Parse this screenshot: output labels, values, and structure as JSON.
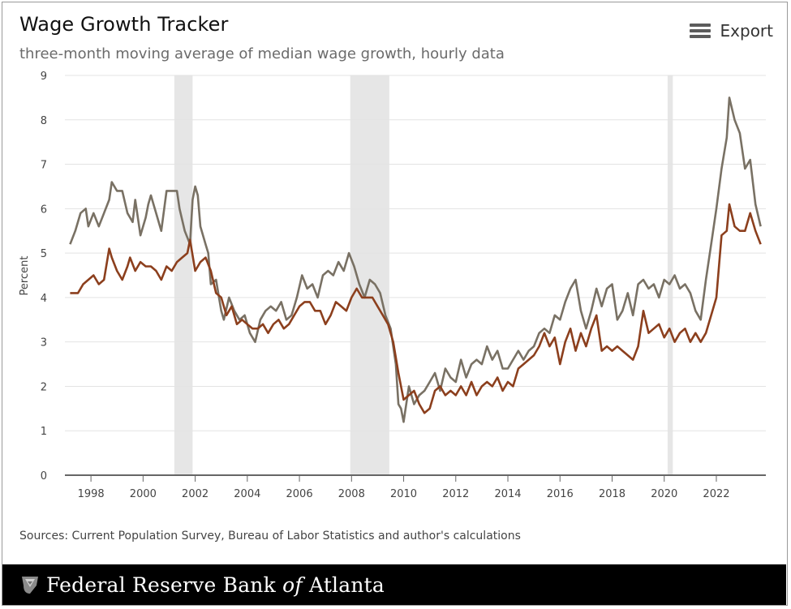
{
  "header": {
    "title": "Wage Growth Tracker",
    "subtitle": "three-month moving average of median wage growth, hourly data",
    "export_label": "Export",
    "export_icon": "hamburger-menu-icon"
  },
  "sources": "Sources: Current Population Survey, Bureau of Labor Statistics and author's calculations",
  "footer": {
    "bank_prefix": "Federal Reserve Bank",
    "bank_of": "of",
    "bank_city": "Atlanta",
    "logo_icon": "eagle-seal-icon"
  },
  "chart_data": {
    "type": "line",
    "title": "Wage Growth Tracker",
    "subtitle": "three-month moving average of median wage growth, hourly data",
    "xlabel": "",
    "ylabel": "Percent",
    "xlim": [
      1997.0,
      2023.9
    ],
    "ylim": [
      0,
      9
    ],
    "xticks": [
      1998,
      2000,
      2002,
      2004,
      2006,
      2008,
      2010,
      2012,
      2014,
      2016,
      2018,
      2020,
      2022
    ],
    "yticks": [
      0,
      1,
      2,
      3,
      4,
      5,
      6,
      7,
      8,
      9
    ],
    "grid": "horizontal",
    "legend": "none",
    "recessions": [
      {
        "start": 2001.2,
        "end": 2001.9
      },
      {
        "start": 2007.95,
        "end": 2009.45
      },
      {
        "start": 2020.13,
        "end": 2020.33
      }
    ],
    "series": [
      {
        "color": "#797164",
        "points": [
          [
            1997.2,
            5.2
          ],
          [
            1997.4,
            5.5
          ],
          [
            1997.6,
            5.9
          ],
          [
            1997.8,
            6.0
          ],
          [
            1997.9,
            5.6
          ],
          [
            1998.1,
            5.9
          ],
          [
            1998.3,
            5.6
          ],
          [
            1998.5,
            5.9
          ],
          [
            1998.7,
            6.2
          ],
          [
            1998.8,
            6.6
          ],
          [
            1999.0,
            6.4
          ],
          [
            1999.2,
            6.4
          ],
          [
            1999.4,
            5.9
          ],
          [
            1999.5,
            5.8
          ],
          [
            1999.6,
            5.7
          ],
          [
            1999.7,
            6.2
          ],
          [
            1999.8,
            5.8
          ],
          [
            1999.9,
            5.4
          ],
          [
            2000.1,
            5.8
          ],
          [
            2000.2,
            6.1
          ],
          [
            2000.3,
            6.3
          ],
          [
            2000.5,
            5.9
          ],
          [
            2000.7,
            5.5
          ],
          [
            2000.9,
            6.4
          ],
          [
            2001.1,
            6.4
          ],
          [
            2001.3,
            6.4
          ],
          [
            2001.4,
            6.0
          ],
          [
            2001.6,
            5.5
          ],
          [
            2001.8,
            5.2
          ],
          [
            2001.9,
            6.2
          ],
          [
            2002.0,
            6.5
          ],
          [
            2002.1,
            6.3
          ],
          [
            2002.2,
            5.6
          ],
          [
            2002.4,
            5.2
          ],
          [
            2002.5,
            5.0
          ],
          [
            2002.6,
            4.3
          ],
          [
            2002.8,
            4.4
          ],
          [
            2003.0,
            3.7
          ],
          [
            2003.1,
            3.5
          ],
          [
            2003.3,
            4.0
          ],
          [
            2003.5,
            3.7
          ],
          [
            2003.7,
            3.5
          ],
          [
            2003.9,
            3.6
          ],
          [
            2004.1,
            3.2
          ],
          [
            2004.3,
            3.0
          ],
          [
            2004.5,
            3.5
          ],
          [
            2004.7,
            3.7
          ],
          [
            2004.9,
            3.8
          ],
          [
            2005.1,
            3.7
          ],
          [
            2005.3,
            3.9
          ],
          [
            2005.5,
            3.5
          ],
          [
            2005.7,
            3.6
          ],
          [
            2005.9,
            4.0
          ],
          [
            2006.1,
            4.5
          ],
          [
            2006.3,
            4.2
          ],
          [
            2006.5,
            4.3
          ],
          [
            2006.7,
            4.0
          ],
          [
            2006.9,
            4.5
          ],
          [
            2007.1,
            4.6
          ],
          [
            2007.3,
            4.5
          ],
          [
            2007.5,
            4.8
          ],
          [
            2007.7,
            4.6
          ],
          [
            2007.9,
            5.0
          ],
          [
            2008.1,
            4.7
          ],
          [
            2008.3,
            4.3
          ],
          [
            2008.5,
            4.0
          ],
          [
            2008.7,
            4.4
          ],
          [
            2008.9,
            4.3
          ],
          [
            2009.1,
            4.1
          ],
          [
            2009.3,
            3.6
          ],
          [
            2009.5,
            3.3
          ],
          [
            2009.7,
            2.5
          ],
          [
            2009.8,
            1.6
          ],
          [
            2009.9,
            1.5
          ],
          [
            2010.0,
            1.2
          ],
          [
            2010.2,
            2.0
          ],
          [
            2010.4,
            1.6
          ],
          [
            2010.6,
            1.8
          ],
          [
            2010.8,
            1.9
          ],
          [
            2011.0,
            2.1
          ],
          [
            2011.2,
            2.3
          ],
          [
            2011.4,
            1.9
          ],
          [
            2011.6,
            2.4
          ],
          [
            2011.8,
            2.2
          ],
          [
            2012.0,
            2.1
          ],
          [
            2012.2,
            2.6
          ],
          [
            2012.4,
            2.2
          ],
          [
            2012.6,
            2.5
          ],
          [
            2012.8,
            2.6
          ],
          [
            2013.0,
            2.5
          ],
          [
            2013.2,
            2.9
          ],
          [
            2013.4,
            2.6
          ],
          [
            2013.6,
            2.8
          ],
          [
            2013.8,
            2.4
          ],
          [
            2014.0,
            2.4
          ],
          [
            2014.2,
            2.6
          ],
          [
            2014.4,
            2.8
          ],
          [
            2014.6,
            2.6
          ],
          [
            2014.8,
            2.8
          ],
          [
            2015.0,
            2.9
          ],
          [
            2015.2,
            3.2
          ],
          [
            2015.4,
            3.3
          ],
          [
            2015.6,
            3.2
          ],
          [
            2015.8,
            3.6
          ],
          [
            2016.0,
            3.5
          ],
          [
            2016.2,
            3.9
          ],
          [
            2016.4,
            4.2
          ],
          [
            2016.6,
            4.4
          ],
          [
            2016.8,
            3.7
          ],
          [
            2017.0,
            3.3
          ],
          [
            2017.2,
            3.7
          ],
          [
            2017.4,
            4.2
          ],
          [
            2017.6,
            3.8
          ],
          [
            2017.8,
            4.2
          ],
          [
            2018.0,
            4.3
          ],
          [
            2018.2,
            3.5
          ],
          [
            2018.4,
            3.7
          ],
          [
            2018.6,
            4.1
          ],
          [
            2018.8,
            3.6
          ],
          [
            2019.0,
            4.3
          ],
          [
            2019.2,
            4.4
          ],
          [
            2019.4,
            4.2
          ],
          [
            2019.6,
            4.3
          ],
          [
            2019.8,
            4.0
          ],
          [
            2020.0,
            4.4
          ],
          [
            2020.2,
            4.3
          ],
          [
            2020.4,
            4.5
          ],
          [
            2020.6,
            4.2
          ],
          [
            2020.8,
            4.3
          ],
          [
            2021.0,
            4.1
          ],
          [
            2021.2,
            3.7
          ],
          [
            2021.4,
            3.5
          ],
          [
            2021.6,
            4.4
          ],
          [
            2021.8,
            5.2
          ],
          [
            2022.0,
            6.0
          ],
          [
            2022.2,
            6.9
          ],
          [
            2022.4,
            7.6
          ],
          [
            2022.5,
            8.5
          ],
          [
            2022.7,
            8.0
          ],
          [
            2022.9,
            7.7
          ],
          [
            2023.1,
            6.9
          ],
          [
            2023.3,
            7.1
          ],
          [
            2023.5,
            6.1
          ],
          [
            2023.7,
            5.6
          ]
        ]
      },
      {
        "color": "#8c3f1d",
        "points": [
          [
            1997.2,
            4.1
          ],
          [
            1997.5,
            4.1
          ],
          [
            1997.7,
            4.3
          ],
          [
            1997.9,
            4.4
          ],
          [
            1998.1,
            4.5
          ],
          [
            1998.3,
            4.3
          ],
          [
            1998.5,
            4.4
          ],
          [
            1998.7,
            5.1
          ],
          [
            1998.8,
            4.9
          ],
          [
            1999.0,
            4.6
          ],
          [
            1999.2,
            4.4
          ],
          [
            1999.4,
            4.7
          ],
          [
            1999.5,
            4.9
          ],
          [
            1999.7,
            4.6
          ],
          [
            1999.9,
            4.8
          ],
          [
            2000.1,
            4.7
          ],
          [
            2000.3,
            4.7
          ],
          [
            2000.5,
            4.6
          ],
          [
            2000.7,
            4.4
          ],
          [
            2000.9,
            4.7
          ],
          [
            2001.1,
            4.6
          ],
          [
            2001.3,
            4.8
          ],
          [
            2001.5,
            4.9
          ],
          [
            2001.7,
            5.0
          ],
          [
            2001.8,
            5.3
          ],
          [
            2002.0,
            4.6
          ],
          [
            2002.2,
            4.8
          ],
          [
            2002.4,
            4.9
          ],
          [
            2002.6,
            4.6
          ],
          [
            2002.8,
            4.1
          ],
          [
            2003.0,
            4.0
          ],
          [
            2003.2,
            3.6
          ],
          [
            2003.4,
            3.8
          ],
          [
            2003.6,
            3.4
          ],
          [
            2003.8,
            3.5
          ],
          [
            2004.0,
            3.4
          ],
          [
            2004.2,
            3.3
          ],
          [
            2004.4,
            3.3
          ],
          [
            2004.6,
            3.4
          ],
          [
            2004.8,
            3.2
          ],
          [
            2005.0,
            3.4
          ],
          [
            2005.2,
            3.5
          ],
          [
            2005.4,
            3.3
          ],
          [
            2005.6,
            3.4
          ],
          [
            2005.8,
            3.6
          ],
          [
            2006.0,
            3.8
          ],
          [
            2006.2,
            3.9
          ],
          [
            2006.4,
            3.9
          ],
          [
            2006.6,
            3.7
          ],
          [
            2006.8,
            3.7
          ],
          [
            2007.0,
            3.4
          ],
          [
            2007.2,
            3.6
          ],
          [
            2007.4,
            3.9
          ],
          [
            2007.6,
            3.8
          ],
          [
            2007.8,
            3.7
          ],
          [
            2008.0,
            4.0
          ],
          [
            2008.2,
            4.2
          ],
          [
            2008.4,
            4.0
          ],
          [
            2008.6,
            4.0
          ],
          [
            2008.8,
            4.0
          ],
          [
            2009.0,
            3.8
          ],
          [
            2009.2,
            3.6
          ],
          [
            2009.4,
            3.4
          ],
          [
            2009.6,
            3.0
          ],
          [
            2009.8,
            2.3
          ],
          [
            2010.0,
            1.7
          ],
          [
            2010.2,
            1.8
          ],
          [
            2010.4,
            1.9
          ],
          [
            2010.6,
            1.6
          ],
          [
            2010.8,
            1.4
          ],
          [
            2011.0,
            1.5
          ],
          [
            2011.2,
            1.9
          ],
          [
            2011.4,
            2.0
          ],
          [
            2011.6,
            1.8
          ],
          [
            2011.8,
            1.9
          ],
          [
            2012.0,
            1.8
          ],
          [
            2012.2,
            2.0
          ],
          [
            2012.4,
            1.8
          ],
          [
            2012.6,
            2.1
          ],
          [
            2012.8,
            1.8
          ],
          [
            2013.0,
            2.0
          ],
          [
            2013.2,
            2.1
          ],
          [
            2013.4,
            2.0
          ],
          [
            2013.6,
            2.2
          ],
          [
            2013.8,
            1.9
          ],
          [
            2014.0,
            2.1
          ],
          [
            2014.2,
            2.0
          ],
          [
            2014.4,
            2.4
          ],
          [
            2014.6,
            2.5
          ],
          [
            2014.8,
            2.6
          ],
          [
            2015.0,
            2.7
          ],
          [
            2015.2,
            2.9
          ],
          [
            2015.4,
            3.2
          ],
          [
            2015.6,
            2.9
          ],
          [
            2015.8,
            3.1
          ],
          [
            2016.0,
            2.5
          ],
          [
            2016.2,
            3.0
          ],
          [
            2016.4,
            3.3
          ],
          [
            2016.6,
            2.8
          ],
          [
            2016.8,
            3.2
          ],
          [
            2017.0,
            2.9
          ],
          [
            2017.2,
            3.3
          ],
          [
            2017.4,
            3.6
          ],
          [
            2017.6,
            2.8
          ],
          [
            2017.8,
            2.9
          ],
          [
            2018.0,
            2.8
          ],
          [
            2018.2,
            2.9
          ],
          [
            2018.4,
            2.8
          ],
          [
            2018.6,
            2.7
          ],
          [
            2018.8,
            2.6
          ],
          [
            2019.0,
            2.9
          ],
          [
            2019.2,
            3.7
          ],
          [
            2019.4,
            3.2
          ],
          [
            2019.6,
            3.3
          ],
          [
            2019.8,
            3.4
          ],
          [
            2020.0,
            3.1
          ],
          [
            2020.2,
            3.3
          ],
          [
            2020.4,
            3.0
          ],
          [
            2020.6,
            3.2
          ],
          [
            2020.8,
            3.3
          ],
          [
            2021.0,
            3.0
          ],
          [
            2021.2,
            3.2
          ],
          [
            2021.4,
            3.0
          ],
          [
            2021.6,
            3.2
          ],
          [
            2021.8,
            3.6
          ],
          [
            2022.0,
            4.0
          ],
          [
            2022.2,
            5.4
          ],
          [
            2022.4,
            5.5
          ],
          [
            2022.5,
            6.1
          ],
          [
            2022.7,
            5.6
          ],
          [
            2022.9,
            5.5
          ],
          [
            2023.1,
            5.5
          ],
          [
            2023.3,
            5.9
          ],
          [
            2023.5,
            5.5
          ],
          [
            2023.7,
            5.2
          ]
        ]
      }
    ]
  }
}
